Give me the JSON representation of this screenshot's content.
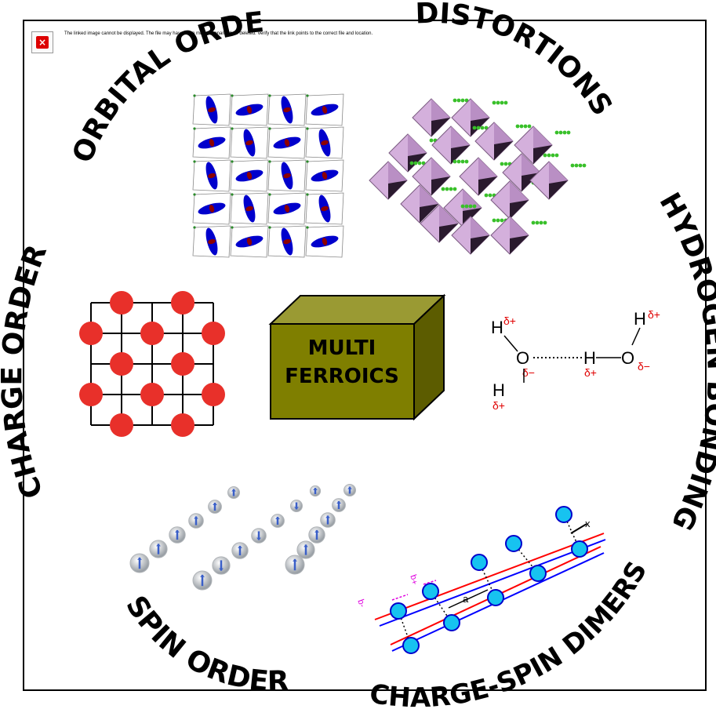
{
  "broken_image": {
    "message": "The linked image cannot be displayed.  The file may have been moved, renamed, or deleted. Verify that the link points to the correct file and location."
  },
  "center": {
    "line1": "MULTI",
    "line2": "FERROICS"
  },
  "labels": {
    "orbital": "ORBITAL ORDER",
    "distortions": "DISTORTIONS",
    "hydrogen": "HYDROGEN BONDING",
    "charge": "CHARGE ORDER",
    "spin": "SPIN ORDER",
    "dimers": "CHARGE-SPIN DIMERS"
  },
  "hbond": {
    "H": "H",
    "O": "O",
    "dp": "δ+",
    "dm": "δ−"
  },
  "dimer": {
    "a": "a",
    "x": "x",
    "pq": "+q",
    "mq": "-q"
  },
  "colors": {
    "cube_front": "#7f7f00",
    "cube_top": "#9a9a33",
    "cube_side": "#5c5c00",
    "charge_dot": "#e8302a",
    "orbital": "#0000cc",
    "octa": "#d4b0dc",
    "dimer_dot": "#17c3f0",
    "hbond_label": "#e00000"
  }
}
